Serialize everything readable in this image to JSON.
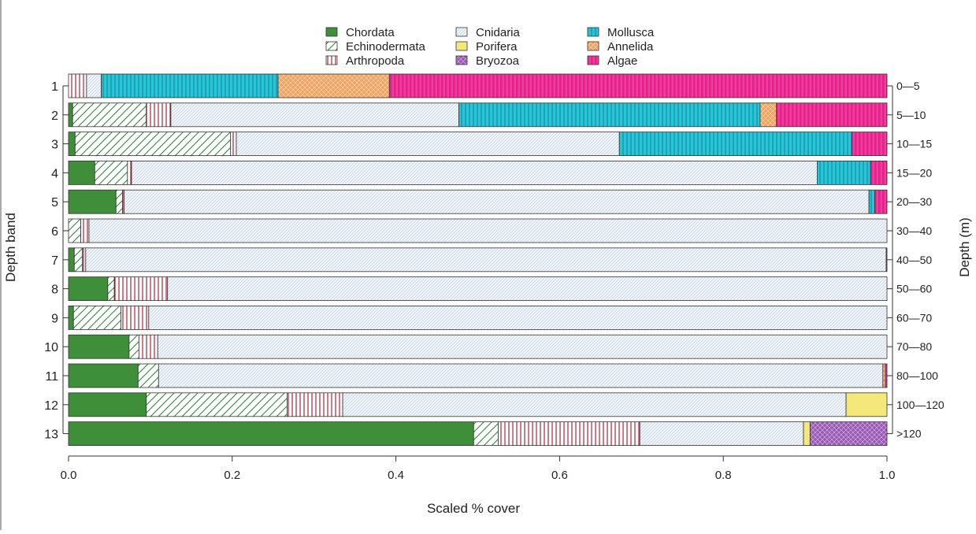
{
  "chart_data": {
    "type": "bar",
    "orientation": "horizontal",
    "stacked": true,
    "xlabel": "Scaled % cover",
    "ylabel": "Depth band",
    "ylabel_right": "Depth (m)",
    "xlim": [
      0,
      1
    ],
    "xticks": [
      "0.0",
      "0.2",
      "0.4",
      "0.6",
      "0.8",
      "1.0"
    ],
    "legend_position": "top-center",
    "categories": [
      "1",
      "2",
      "3",
      "4",
      "5",
      "6",
      "7",
      "8",
      "9",
      "10",
      "11",
      "12",
      "13"
    ],
    "depth_labels": [
      "0—5",
      "5—10",
      "10—15",
      "15—20",
      "20—30",
      "30—40",
      "40—50",
      "50—60",
      "60—70",
      "70—80",
      "80—100",
      "100—120",
      ">120"
    ],
    "series": [
      {
        "name": "Chordata",
        "color": "#3e8e3a",
        "pattern": "solid",
        "values": [
          0.0,
          0.005,
          0.008,
          0.032,
          0.058,
          0.0,
          0.007,
          0.048,
          0.006,
          0.074,
          0.085,
          0.095,
          0.495
        ]
      },
      {
        "name": "Echinodermata",
        "color": "#2e7d32",
        "pattern": "diagonal",
        "values": [
          0.0,
          0.09,
          0.19,
          0.04,
          0.008,
          0.015,
          0.01,
          0.008,
          0.058,
          0.012,
          0.025,
          0.172,
          0.03
        ]
      },
      {
        "name": "Arthropoda",
        "color": "#b22234",
        "pattern": "vertical",
        "values": [
          0.022,
          0.03,
          0.007,
          0.005,
          0.002,
          0.01,
          0.004,
          0.065,
          0.034,
          0.023,
          0.0,
          0.068,
          0.173
        ]
      },
      {
        "name": "Cnidaria",
        "color": "#a9bdd6",
        "pattern": "fine",
        "values": [
          0.018,
          0.352,
          0.468,
          0.838,
          0.91,
          0.975,
          0.978,
          0.879,
          0.902,
          0.891,
          0.885,
          0.615,
          0.2
        ]
      },
      {
        "name": "Porifera",
        "color": "#f5e87a",
        "pattern": "solid",
        "values": [
          0.0,
          0.0,
          0.0,
          0.0,
          0.0,
          0.0,
          0.0,
          0.0,
          0.0,
          0.0,
          0.0,
          0.05,
          0.008
        ]
      },
      {
        "name": "Bryozoa",
        "color": "#9b59b6",
        "pattern": "crosshatch",
        "values": [
          0.0,
          0.0,
          0.0,
          0.0,
          0.0,
          0.0,
          0.0,
          0.0,
          0.0,
          0.0,
          0.0,
          0.0,
          0.094
        ]
      },
      {
        "name": "Mollusca",
        "color": "#26c6da",
        "pattern": "vertical",
        "values": [
          0.216,
          0.368,
          0.284,
          0.065,
          0.007,
          0.0,
          0.0,
          0.0,
          0.0,
          0.0,
          0.0,
          0.0,
          0.0
        ]
      },
      {
        "name": "Annelida",
        "color": "#f4a460",
        "pattern": "crosshatch",
        "values": [
          0.136,
          0.02,
          0.0,
          0.0,
          0.0,
          0.0,
          0.0,
          0.0,
          0.0,
          0.0,
          0.003,
          0.0,
          0.0
        ]
      },
      {
        "name": "Algae",
        "color": "#e91e8c",
        "pattern": "vertical",
        "values": [
          0.608,
          0.135,
          0.043,
          0.02,
          0.015,
          0.0,
          0.001,
          0.0,
          0.0,
          0.0,
          0.002,
          0.0,
          0.0
        ]
      }
    ],
    "legend_order": [
      [
        "Chordata",
        "Echinodermata",
        "Arthropoda"
      ],
      [
        "Cnidaria",
        "Porifera",
        "Bryozoa"
      ],
      [
        "Mollusca",
        "Annelida",
        "Algae"
      ]
    ]
  }
}
